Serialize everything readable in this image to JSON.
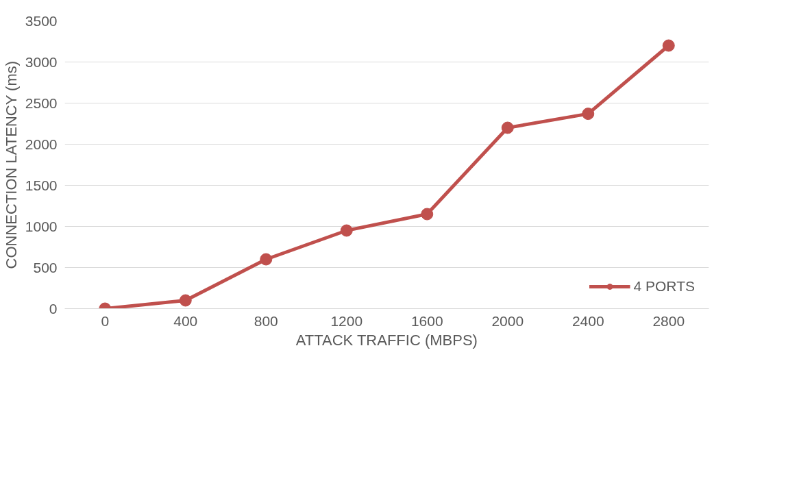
{
  "chart_data": {
    "type": "line",
    "xlabel": "ATTACK TRAFFIC (MBPS)",
    "ylabel": "CONNECTION LATENCY (ms)",
    "categories": [
      "0",
      "400",
      "800",
      "1200",
      "1600",
      "2000",
      "2400",
      "2800"
    ],
    "series": [
      {
        "name": "4 PORTS",
        "color": "#c0504d",
        "values": [
          0,
          100,
          600,
          950,
          1150,
          2200,
          2370,
          3200
        ]
      }
    ],
    "ylim": [
      0,
      3500
    ],
    "yticks": [
      0,
      500,
      1000,
      1500,
      2000,
      2500,
      3000,
      3500
    ],
    "grid": "y",
    "legend": "bottom right",
    "marker": "circle",
    "line_style": "solid"
  }
}
